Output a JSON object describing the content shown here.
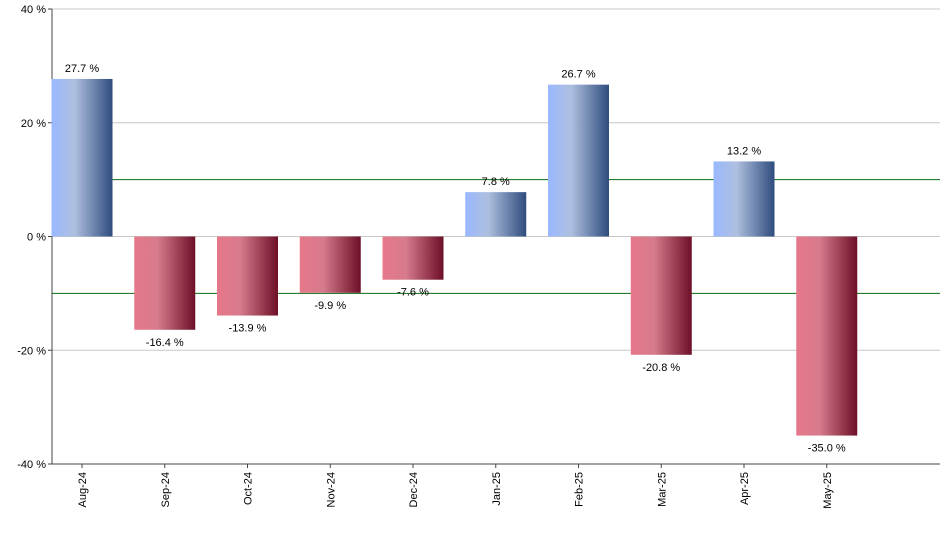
{
  "chart_data": {
    "type": "bar",
    "title": "",
    "xlabel": "",
    "ylabel": "",
    "categories": [
      "Aug-24",
      "Sep-24",
      "Oct-24",
      "Nov-24",
      "Dec-24",
      "Jan-25",
      "Feb-25",
      "Mar-25",
      "Apr-25",
      "May-25"
    ],
    "values": [
      27.7,
      -16.4,
      -13.9,
      -9.9,
      -7.6,
      7.8,
      26.7,
      -20.8,
      13.2,
      -35.0
    ],
    "value_labels": [
      "27.7 %",
      "-16.4 %",
      "-13.9 %",
      "-9.9 %",
      "-7.6 %",
      "7.8 %",
      "26.7 %",
      "-20.8 %",
      "13.2 %",
      "-35.0 %"
    ],
    "ylim": [
      -40,
      40
    ],
    "y_ticks": [
      40,
      20,
      0,
      -20,
      -40
    ],
    "y_tick_labels": [
      "40 %",
      "20 %",
      "0 %",
      "-20 %",
      "-40 %"
    ],
    "reference_lines": [
      10,
      -10
    ],
    "grid": true,
    "legend": "none",
    "colors": {
      "positive_light": "#99b8ff",
      "positive_dark": "#2e4c7d",
      "negative_light": "#e6788a",
      "negative_dark": "#6d0f27",
      "gridline": "#c8c8c8",
      "reference_line": "#0b6b12",
      "axis": "#444444"
    }
  }
}
